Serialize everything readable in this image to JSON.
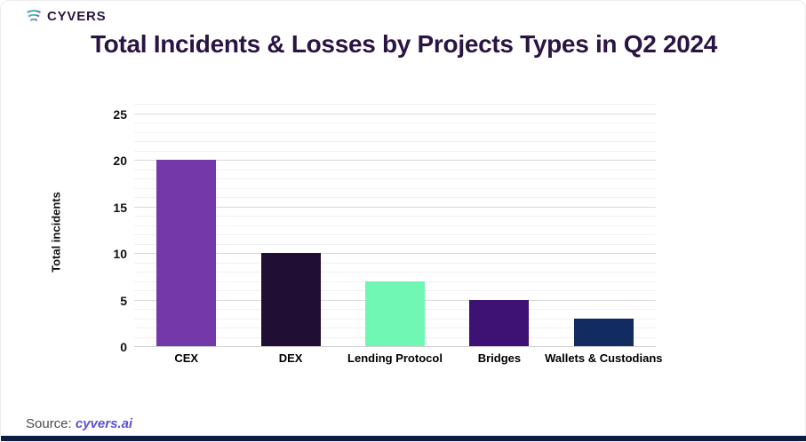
{
  "header": {
    "brand": "CYVERS",
    "title": "Total Incidents & Losses by Projects Types in Q2 2024"
  },
  "chart_data": {
    "type": "bar",
    "title": "Total Incidents & Losses by Projects Types in Q2 2024",
    "categories": [
      "CEX",
      "DEX",
      "Lending Protocol",
      "Bridges",
      "Wallets & Custodians"
    ],
    "values": [
      20,
      10,
      7,
      5,
      3
    ],
    "bar_colors": [
      "#7438a8",
      "#200e34",
      "#6ff7b3",
      "#3e1174",
      "#122c61"
    ],
    "xlabel": "",
    "ylabel": "Total incidents",
    "ylim": [
      0,
      25
    ],
    "yticks": [
      0,
      5,
      10,
      15,
      20,
      25
    ],
    "grid": "horizontal minor every 1 unit, major every 5 units",
    "legend_position": "none"
  },
  "footer": {
    "source_label": "Source:",
    "source_link_text": "cyvers.ai"
  },
  "colors": {
    "title_text": "#2a1443",
    "source_link": "#5b50d6",
    "bottom_bar": "#0d1b45",
    "gridline_minor": "#f1f1f1",
    "gridline_major": "#d9d9d9"
  },
  "icons": {
    "logo_icon": "cyvers-swirl-icon"
  }
}
